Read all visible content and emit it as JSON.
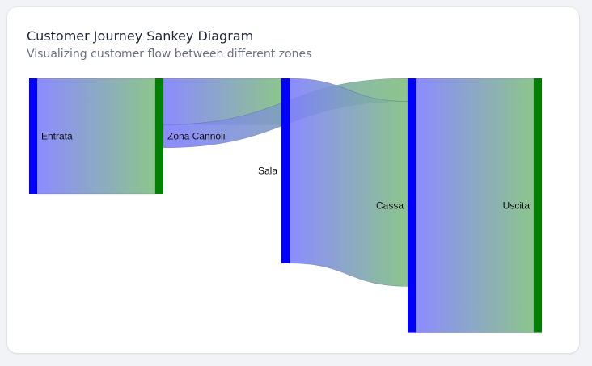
{
  "card": {
    "title": "Customer Journey Sankey Diagram",
    "subtitle": "Visualizing customer flow between different zones"
  },
  "colors": {
    "node_source": "#0000ff",
    "node_target": "#008000",
    "link_start": "#7f7fff",
    "link_end": "#7fbf7f"
  },
  "chart_data": {
    "type": "sankey",
    "nodes": [
      {
        "id": "entrata",
        "label": "Entrata",
        "color": "#0000ff"
      },
      {
        "id": "zona-cannoli",
        "label": "Zona Cannoli",
        "color": "#008000"
      },
      {
        "id": "sala",
        "label": "Sala",
        "color": "#0000ff"
      },
      {
        "id": "cassa",
        "label": "Cassa",
        "color": "#0000ff"
      },
      {
        "id": "uscita",
        "label": "Uscita",
        "color": "#008000"
      }
    ],
    "links": [
      {
        "source": "entrata",
        "target": "zona-cannoli",
        "value": 100
      },
      {
        "source": "zona-cannoli",
        "target": "sala",
        "value": 40
      },
      {
        "source": "zona-cannoli",
        "target": "cassa",
        "value": 20
      },
      {
        "source": "sala",
        "target": "cassa",
        "value": 160
      },
      {
        "source": "cassa",
        "target": "uscita",
        "value": 220
      }
    ]
  }
}
